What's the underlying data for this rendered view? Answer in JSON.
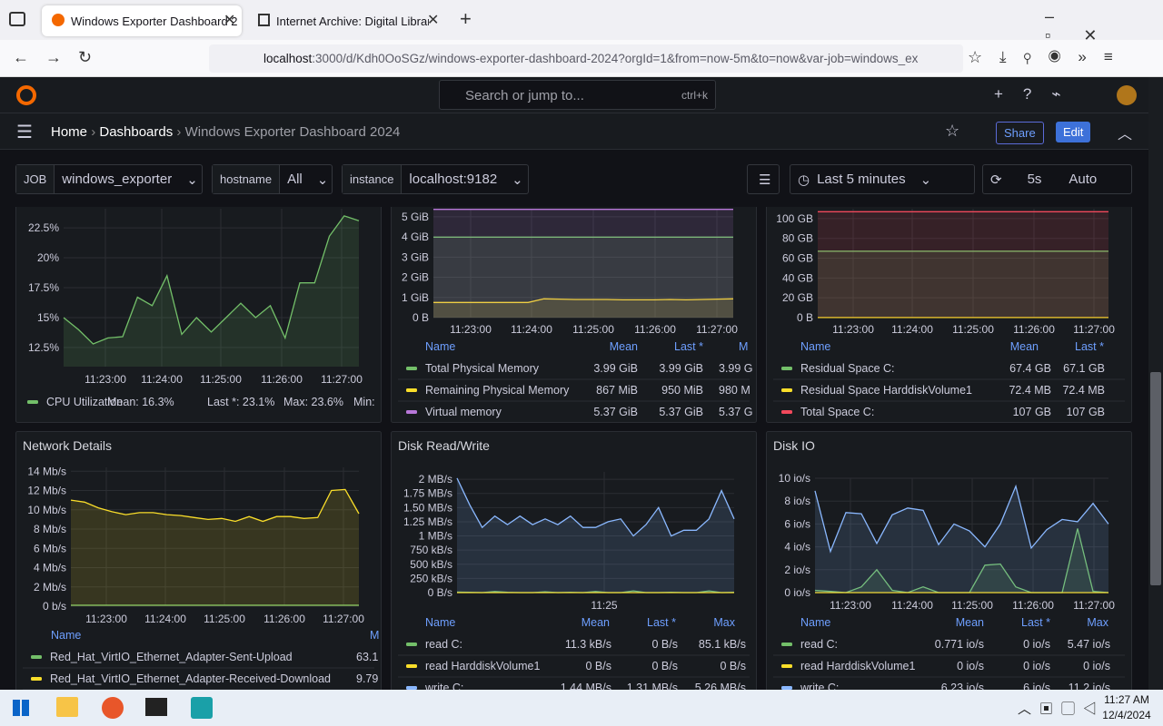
{
  "browser": {
    "tabs": [
      "Windows Exporter Dashboard 2",
      "Internet Archive: Digital Library"
    ],
    "url_host": "localhost",
    "url_rest": ":3000/d/Kdh0OoSGz/windows-exporter-dashboard-2024?orgId=1&from=now-5m&to=now&var-job=windows_ex"
  },
  "grafana": {
    "search": "Search or jump to...",
    "shortcut": "ctrl+k",
    "breadcrumbs": [
      "Home",
      "Dashboards",
      "Windows Exporter Dashboard 2024"
    ],
    "share": "Share",
    "edit": "Edit",
    "variables": [
      {
        "label": "JOB",
        "value": "windows_exporter"
      },
      {
        "label": "hostname",
        "value": "All"
      },
      {
        "label": "instance",
        "value": "localhost:9182"
      }
    ],
    "time_range": "Last 5 minutes",
    "refresh": "5s",
    "auto": "Auto"
  },
  "panels": [
    {
      "chart": {
        "type": "line",
        "ylim": [
          10.9,
          24.1
        ],
        "yticks": [
          {
            "value": 12.5,
            "label": "12.5%"
          },
          {
            "value": 15,
            "label": "15%"
          },
          {
            "value": 17.5,
            "label": "17.5%"
          },
          {
            "value": 20,
            "label": "20%"
          },
          {
            "value": 22.5,
            "label": "22.5%"
          }
        ],
        "xticks": [
          "11:23:00",
          "11:24:00",
          "11:25:00",
          "11:26:00",
          "11:27:00"
        ],
        "series": [
          {
            "name": "CPU Utilization",
            "color": "#73bf69",
            "values": [
              15,
              14,
              12.8,
              13.3,
              13.4,
              16.7,
              16,
              18.5,
              13.6,
              15,
              13.8,
              15,
              16.2,
              15,
              16,
              13.3,
              17.9,
              17.9,
              21.8,
              23.5,
              23.1
            ]
          }
        ]
      },
      "legend": {
        "rows": [
          [
            "Mean: 16.3%",
            "Last *: 23.1%",
            "Max: 23.6%",
            "Min:"
          ]
        ]
      }
    },
    {
      "chart": {
        "type": "line",
        "ylim": [
          0,
          5.4
        ],
        "yticks": [
          {
            "value": 0,
            "label": "0 B"
          },
          {
            "value": 1,
            "label": "1 GiB"
          },
          {
            "value": 2,
            "label": "2 GiB"
          },
          {
            "value": 3,
            "label": "3 GiB"
          },
          {
            "value": 4,
            "label": "4 GiB"
          },
          {
            "value": 5,
            "label": "5 GiB"
          }
        ],
        "xticks": [
          "11:23:00",
          "11:24:00",
          "11:25:00",
          "11:26:00",
          "11:27:00"
        ],
        "series": [
          {
            "name": "Total Physical Memory",
            "color": "#73bf69",
            "values": [
              3.99,
              3.99,
              3.99,
              3.99,
              3.99,
              3.99,
              3.99,
              3.99,
              3.99,
              3.99,
              3.99,
              3.99,
              3.99,
              3.99,
              3.99,
              3.99,
              3.99,
              3.99,
              3.99,
              3.99
            ]
          },
          {
            "name": "Remaining Physical Memory",
            "color": "#fade2a",
            "values": [
              0.75,
              0.75,
              0.75,
              0.75,
              0.75,
              0.75,
              0.75,
              0.93,
              0.92,
              0.9,
              0.9,
              0.9,
              0.88,
              0.88,
              0.88,
              0.9,
              0.88,
              0.9,
              0.92,
              0.93
            ]
          },
          {
            "name": "Virtual memory",
            "color": "#b877d9",
            "values": [
              5.37,
              5.37,
              5.37,
              5.37,
              5.37,
              5.37,
              5.37,
              5.37,
              5.37,
              5.37,
              5.37,
              5.37,
              5.37,
              5.37,
              5.37,
              5.37,
              5.37,
              5.37,
              5.37,
              5.37
            ]
          }
        ]
      },
      "legend": {
        "header": [
          "Name",
          "Mean",
          "Last *",
          "M"
        ],
        "rows": [
          [
            "3.99 GiB",
            "3.99 GiB",
            "3.99 G"
          ],
          [
            "867 MiB",
            "950 MiB",
            "980 M"
          ],
          [
            "5.37 GiB",
            "5.37 GiB",
            "5.37 G"
          ]
        ]
      }
    },
    {
      "chart": {
        "type": "line",
        "ylim": [
          0,
          110
        ],
        "yticks": [
          {
            "value": 0,
            "label": "0 B"
          },
          {
            "value": 20,
            "label": "20 GB"
          },
          {
            "value": 40,
            "label": "40 GB"
          },
          {
            "value": 60,
            "label": "60 GB"
          },
          {
            "value": 80,
            "label": "80 GB"
          },
          {
            "value": 100,
            "label": "100 GB"
          }
        ],
        "xticks": [
          "11:23:00",
          "11:24:00",
          "11:25:00",
          "11:26:00",
          "11:27:00"
        ],
        "series": [
          {
            "name": "Residual Space C:",
            "color": "#73bf69",
            "values": [
              67.1,
              67.1,
              67.1,
              67.1,
              67.1,
              67.1,
              67.1,
              67.1,
              67.1,
              67.1,
              67.1,
              67.1,
              67.1,
              67.1,
              67.1,
              67.1,
              67.1,
              67.1,
              67.1,
              67.1
            ]
          },
          {
            "name": "Residual Space HarddiskVolume1",
            "color": "#fade2a",
            "values": [
              0.0724,
              0.0724,
              0.0724,
              0.0724,
              0.0724,
              0.0724,
              0.0724,
              0.0724,
              0.0724,
              0.0724,
              0.0724,
              0.0724,
              0.0724,
              0.0724,
              0.0724,
              0.0724,
              0.0724,
              0.0724,
              0.0724,
              0.0724
            ]
          },
          {
            "name": "Total Space C:",
            "color": "#f2495c",
            "values": [
              107,
              107,
              107,
              107,
              107,
              107,
              107,
              107,
              107,
              107,
              107,
              107,
              107,
              107,
              107,
              107,
              107,
              107,
              107,
              107
            ]
          }
        ]
      },
      "legend": {
        "header": [
          "Name",
          "Mean",
          "Last *"
        ],
        "rows": [
          [
            "67.4 GB",
            "67.1 GB"
          ],
          [
            "72.4 MB",
            "72.4 MB"
          ],
          [
            "107 GB",
            "107 GB"
          ]
        ]
      }
    },
    {
      "title": "Network Details",
      "chart": {
        "type": "line",
        "ylim": [
          0,
          14.4
        ],
        "yticks": [
          {
            "value": 0,
            "label": "0 b/s"
          },
          {
            "value": 2,
            "label": "2 Mb/s"
          },
          {
            "value": 4,
            "label": "4 Mb/s"
          },
          {
            "value": 6,
            "label": "6 Mb/s"
          },
          {
            "value": 8,
            "label": "8 Mb/s"
          },
          {
            "value": 10,
            "label": "10 Mb/s"
          },
          {
            "value": 12,
            "label": "12 Mb/s"
          },
          {
            "value": 14,
            "label": "14 Mb/s"
          }
        ],
        "xticks": [
          "11:23:00",
          "11:24:00",
          "11:25:00",
          "11:26:00",
          "11:27:00"
        ],
        "series": [
          {
            "name": "Red_Hat_VirtIO_Ethernet_Adapter-Sent-Upload",
            "color": "#73bf69",
            "values": [
              0.1,
              0.1,
              0.1,
              0.1,
              0.1,
              0.1,
              0.1,
              0.1,
              0.1,
              0.1,
              0.1,
              0.1,
              0.1,
              0.1,
              0.1,
              0.1,
              0.1,
              0.1,
              0.1,
              0.1,
              0.1,
              0.1
            ]
          },
          {
            "name": "Red_Hat_VirtIO_Ethernet_Adapter-Received-Download",
            "color": "#fade2a",
            "values": [
              11,
              10.8,
              10.2,
              9.8,
              9.5,
              9.7,
              9.7,
              9.5,
              9.4,
              9.2,
              9,
              9.1,
              8.8,
              9.3,
              8.8,
              9.3,
              9.3,
              9.1,
              9.2,
              12,
              12.1,
              9.6
            ]
          }
        ]
      },
      "legend": {
        "header": [
          "Name",
          "M"
        ],
        "rows": [
          [
            "63.1"
          ],
          [
            "9.79"
          ]
        ]
      }
    },
    {
      "title": "Disk Read/Write",
      "chart": {
        "type": "line",
        "ylim": [
          0,
          2130000
        ],
        "yticks": [
          {
            "value": 0,
            "label": "0 B/s"
          },
          {
            "value": 250000,
            "label": "250 kB/s"
          },
          {
            "value": 500000,
            "label": "500 kB/s"
          },
          {
            "value": 750000,
            "label": "750 kB/s"
          },
          {
            "value": 1000000,
            "label": "1 MB/s"
          },
          {
            "value": 1250000,
            "label": "1.25 MB/s"
          },
          {
            "value": 1500000,
            "label": "1.50 MB/s"
          },
          {
            "value": 1750000,
            "label": "1.75 MB/s"
          },
          {
            "value": 2000000,
            "label": "2 MB/s"
          }
        ],
        "xticks": [
          "11:25"
        ],
        "series": [
          {
            "name": "read C:",
            "color": "#73bf69",
            "values": [
              10000,
              5000,
              0,
              20000,
              5000,
              0,
              0,
              15000,
              0,
              5000,
              0,
              20000,
              0,
              0,
              30000,
              0,
              0,
              5000,
              0,
              0,
              30000,
              0,
              5000
            ]
          },
          {
            "name": "read HarddiskVolume1",
            "color": "#fade2a",
            "values": [
              0,
              0,
              0,
              0,
              0,
              0,
              0,
              0,
              0,
              0,
              0,
              0,
              0,
              0,
              0,
              0,
              0,
              0,
              0,
              0,
              0,
              0,
              0
            ]
          },
          {
            "name": "write C:",
            "color": "#8ab8ff",
            "values": [
              2020000,
              1550000,
              1150000,
              1350000,
              1200000,
              1350000,
              1200000,
              1300000,
              1200000,
              1350000,
              1150000,
              1150000,
              1250000,
              1300000,
              1000000,
              1200000,
              1500000,
              1000000,
              1100000,
              1100000,
              1300000,
              1800000,
              1300000
            ]
          }
        ]
      },
      "legend": {
        "header": [
          "Name",
          "Mean",
          "Last *",
          "Max"
        ],
        "rows": [
          [
            "11.3 kB/s",
            "0 B/s",
            "85.1 kB/s"
          ],
          [
            "0 B/s",
            "0 B/s",
            "0 B/s"
          ],
          [
            "1.44 MB/s",
            "1.31 MB/s",
            "5.26 MB/s"
          ]
        ]
      }
    },
    {
      "title": "Disk IO",
      "chart": {
        "type": "line",
        "ylim": [
          0,
          10
        ],
        "yticks": [
          {
            "value": 0,
            "label": "0 io/s"
          },
          {
            "value": 2,
            "label": "2 io/s"
          },
          {
            "value": 4,
            "label": "4 io/s"
          },
          {
            "value": 6,
            "label": "6 io/s"
          },
          {
            "value": 8,
            "label": "8 io/s"
          },
          {
            "value": 10,
            "label": "10 io/s"
          }
        ],
        "xticks": [
          "11:23:00",
          "11:24:00",
          "11:25:00",
          "11:26:00",
          "11:27:00"
        ],
        "series": [
          {
            "name": "read C:",
            "color": "#73bf69",
            "values": [
              0.2,
              0.1,
              0,
              0.5,
              2,
              0.2,
              0,
              0.5,
              0,
              0,
              0,
              2.4,
              2.5,
              0.5,
              0,
              0,
              0,
              5.6,
              0.1,
              0
            ]
          },
          {
            "name": "read HarddiskVolume1",
            "color": "#fade2a",
            "values": [
              0,
              0,
              0,
              0,
              0,
              0,
              0,
              0,
              0,
              0,
              0,
              0,
              0,
              0,
              0,
              0,
              0,
              0,
              0,
              0
            ]
          },
          {
            "name": "write C:",
            "color": "#8ab8ff",
            "values": [
              8.9,
              3.6,
              7,
              6.9,
              4.3,
              6.8,
              7.4,
              7.2,
              4.2,
              6,
              5.4,
              4,
              6,
              9.3,
              3.9,
              5.5,
              6.4,
              6.2,
              7.8,
              6
            ]
          }
        ]
      },
      "legend": {
        "header": [
          "Name",
          "Mean",
          "Last *",
          "Max"
        ],
        "rows": [
          [
            "0.771 io/s",
            "0 io/s",
            "5.47 io/s"
          ],
          [
            "0 io/s",
            "0 io/s",
            "0 io/s"
          ],
          [
            "6.23 io/s",
            "6 io/s",
            "11.2 io/s"
          ]
        ]
      }
    }
  ],
  "taskbar": {
    "time": "11:27 AM",
    "date": "12/4/2024"
  }
}
